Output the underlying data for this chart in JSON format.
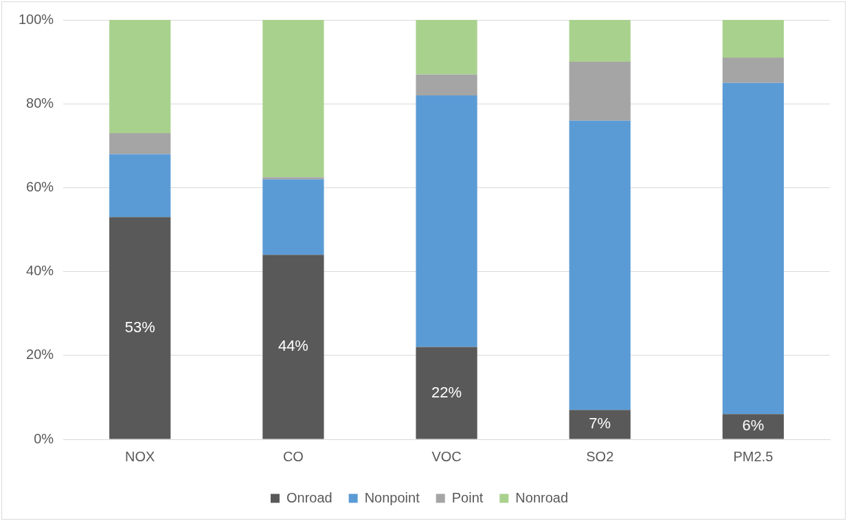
{
  "chart_data": {
    "type": "bar",
    "stacked": true,
    "categories": [
      "NOX",
      "CO",
      "VOC",
      "SO2",
      "PM2.5"
    ],
    "series": [
      {
        "name": "Onroad",
        "color": "#595959",
        "values": [
          53,
          44,
          22,
          7,
          6
        ],
        "value_labels": [
          "53%",
          "44%",
          "22%",
          "7%",
          "6%"
        ]
      },
      {
        "name": "Nonpoint",
        "color": "#5b9bd5",
        "values": [
          15,
          18,
          60,
          69,
          79
        ]
      },
      {
        "name": "Point",
        "color": "#a5a5a5",
        "values": [
          5,
          0.5,
          5,
          14,
          6
        ]
      },
      {
        "name": "Nonroad",
        "color": "#a9d18e",
        "values": [
          27,
          37.5,
          13,
          10,
          9
        ]
      }
    ],
    "ylim": [
      0,
      100
    ],
    "yticks": [
      {
        "value": 0,
        "label": "0%"
      },
      {
        "value": 20,
        "label": "20%"
      },
      {
        "value": 40,
        "label": "40%"
      },
      {
        "value": 60,
        "label": "60%"
      },
      {
        "value": 80,
        "label": "80%"
      },
      {
        "value": 100,
        "label": "100%"
      }
    ],
    "grid": "y",
    "legend": "bottom"
  }
}
